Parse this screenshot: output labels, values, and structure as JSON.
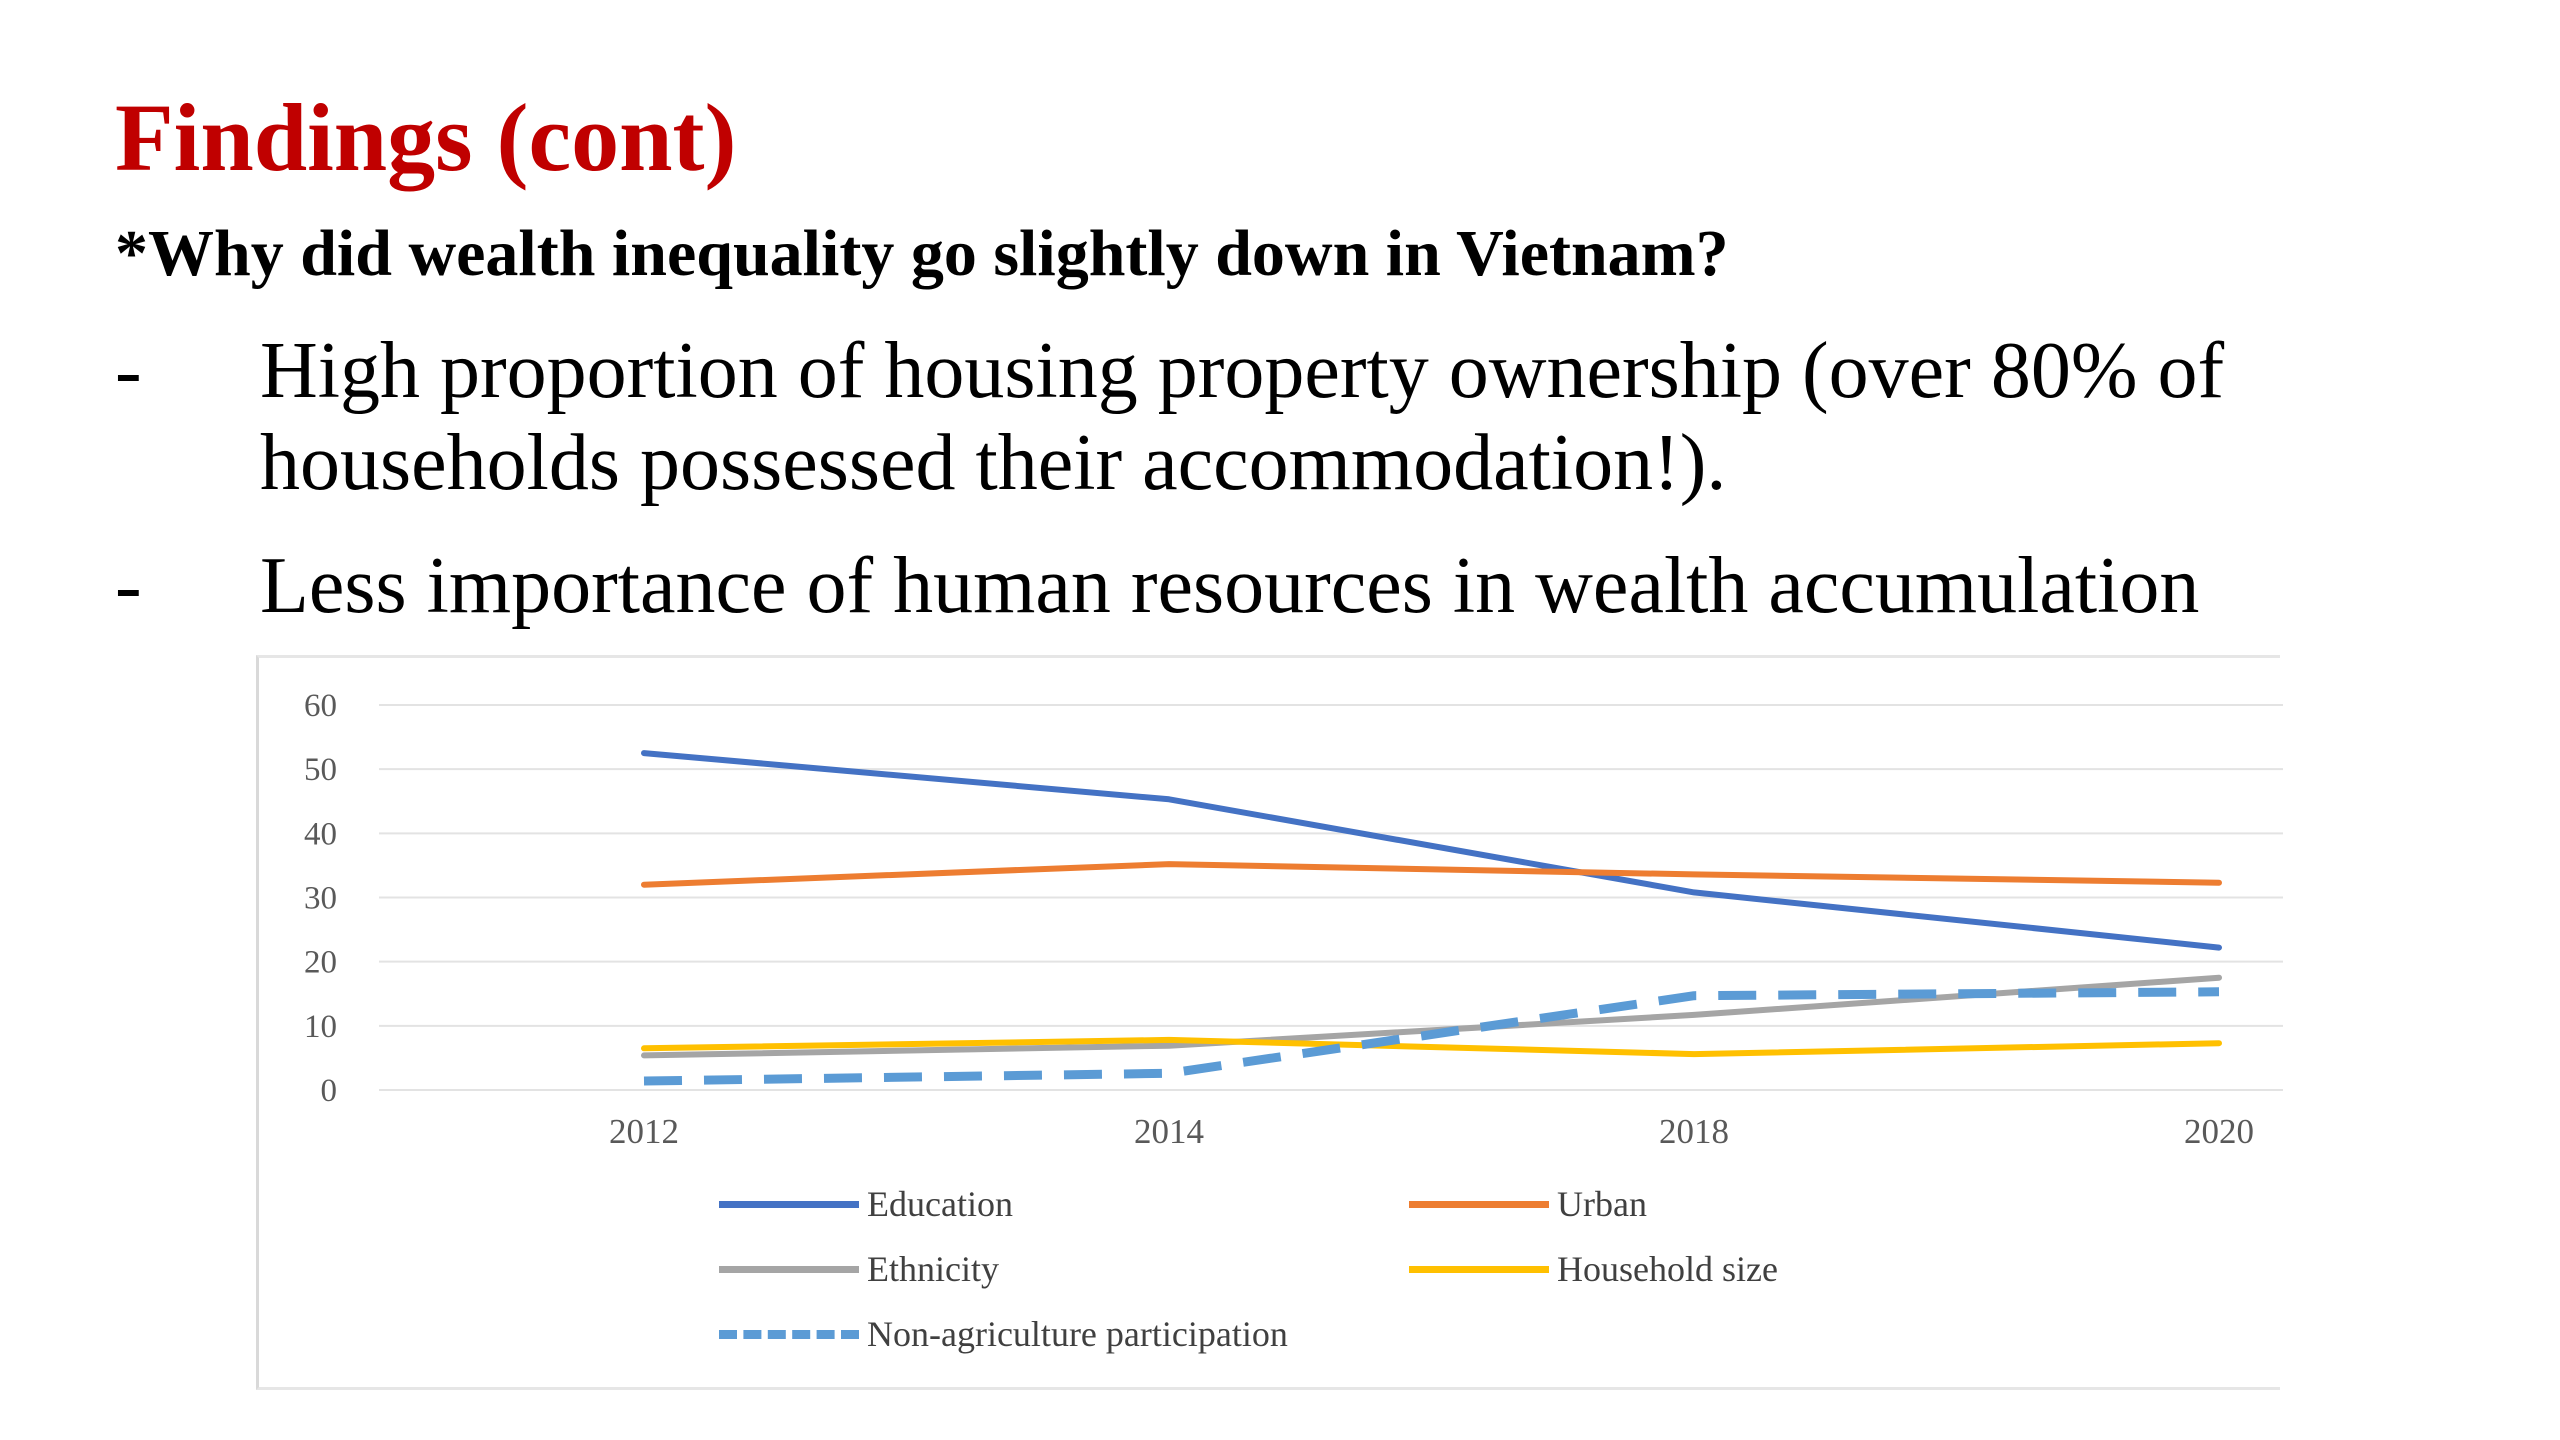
{
  "slide": {
    "title": "Findings (cont)",
    "subtitle": "*Why did wealth inequality go slightly down in Vietnam?",
    "bullets": [
      {
        "marker": "-",
        "text": "High proportion of housing property ownership (over 80% of households possessed their accommodation!)."
      },
      {
        "marker": "-",
        "text": "Less importance of human resources in wealth accumulation"
      }
    ],
    "colors": {
      "title": "#c00000"
    }
  },
  "chart_data": {
    "type": "line",
    "categories": [
      "2012",
      "2014",
      "2018",
      "2020"
    ],
    "ylim": [
      0,
      60
    ],
    "yticks": [
      0,
      10,
      20,
      30,
      40,
      50,
      60
    ],
    "grid": true,
    "legend_position": "bottom",
    "series": [
      {
        "name": "Education",
        "values": [
          52.5,
          45.3,
          30.8,
          22.2
        ],
        "color": "#4472c4",
        "dashed": false
      },
      {
        "name": "Urban",
        "values": [
          32.0,
          35.2,
          33.6,
          32.3
        ],
        "color": "#ed7d31",
        "dashed": false
      },
      {
        "name": "Ethnicity",
        "values": [
          5.4,
          6.9,
          11.7,
          17.5
        ],
        "color": "#a5a5a5",
        "dashed": false
      },
      {
        "name": "Household size",
        "values": [
          6.5,
          7.8,
          5.6,
          7.3
        ],
        "color": "#ffc000",
        "dashed": false
      },
      {
        "name": "Non-agriculture participation",
        "values": [
          1.4,
          2.6,
          14.7,
          15.3
        ],
        "color": "#5b9bd5",
        "dashed": true
      }
    ]
  }
}
